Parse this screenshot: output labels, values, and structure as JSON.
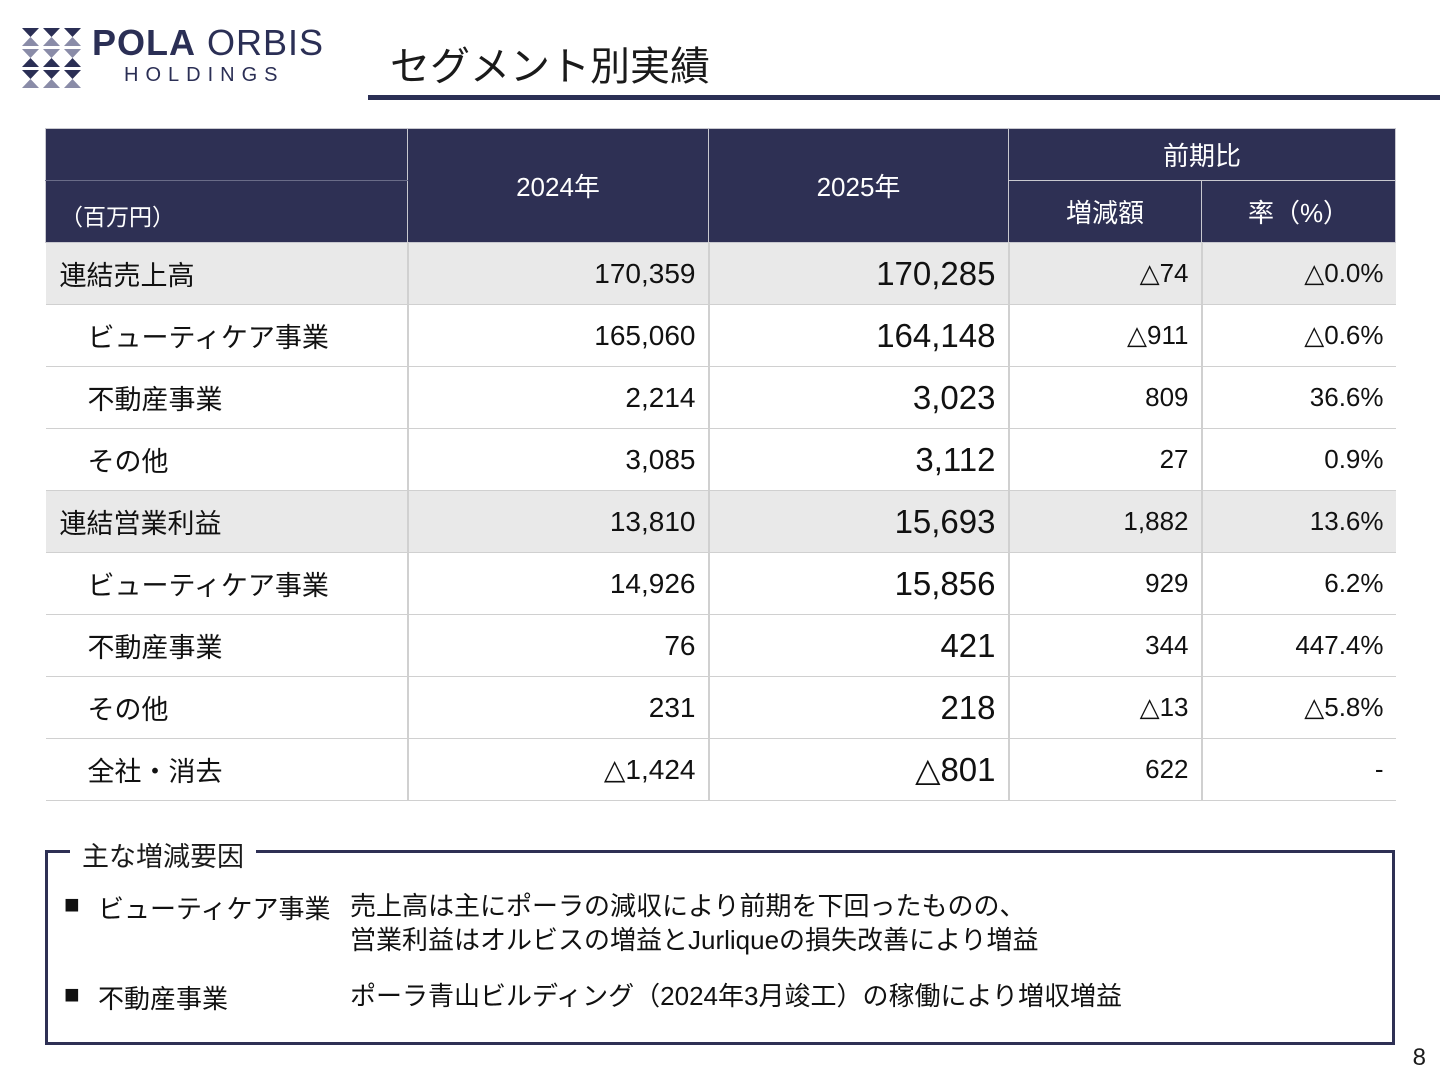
{
  "logo": {
    "brand_bold": "POLA",
    "brand_light": "ORBIS",
    "sub": "HOLDINGS"
  },
  "title": "セグメント別実績",
  "table": {
    "unit": "（百万円）",
    "col_2024": "2024年",
    "col_2025": "2025年",
    "col_prev": "前期比",
    "col_diff": "増減額",
    "col_rate": "率（%）",
    "rows": [
      {
        "label": "連結売上高",
        "v2024": "170,359",
        "v2025": "170,285",
        "diff": "△74",
        "rate": "△0.0%"
      },
      {
        "label": "ビューティケア事業",
        "v2024": "165,060",
        "v2025": "164,148",
        "diff": "△911",
        "rate": "△0.6%"
      },
      {
        "label": "不動産事業",
        "v2024": "2,214",
        "v2025": "3,023",
        "diff": "809",
        "rate": "36.6%"
      },
      {
        "label": "その他",
        "v2024": "3,085",
        "v2025": "3,112",
        "diff": "27",
        "rate": "0.9%"
      },
      {
        "label": "連結営業利益",
        "v2024": "13,810",
        "v2025": "15,693",
        "diff": "1,882",
        "rate": "13.6%"
      },
      {
        "label": "ビューティケア事業",
        "v2024": "14,926",
        "v2025": "15,856",
        "diff": "929",
        "rate": "6.2%"
      },
      {
        "label": "不動産事業",
        "v2024": "76",
        "v2025": "421",
        "diff": "344",
        "rate": "447.4%"
      },
      {
        "label": "その他",
        "v2024": "231",
        "v2025": "218",
        "diff": "△13",
        "rate": "△5.8%"
      },
      {
        "label": "全社・消去",
        "v2024": "△1,424",
        "v2025": "△801",
        "diff": "622",
        "rate": "-"
      }
    ]
  },
  "factors": {
    "title": "主な増減要因",
    "bullet": "■",
    "items": [
      {
        "segment": "ビューティケア事業",
        "line1": "売上高は主にポーラの減収により前期を下回ったものの、",
        "line2": "営業利益はオルビスの増益とJurliqueの損失改善により増益"
      },
      {
        "segment": "不動産事業",
        "line1": "ポーラ青山ビルディング（2024年3月竣工）の稼働により増収増益"
      }
    ]
  },
  "page_number": "8",
  "colors": {
    "navy": "#2e3054",
    "total_row": "#e9e9e9"
  }
}
